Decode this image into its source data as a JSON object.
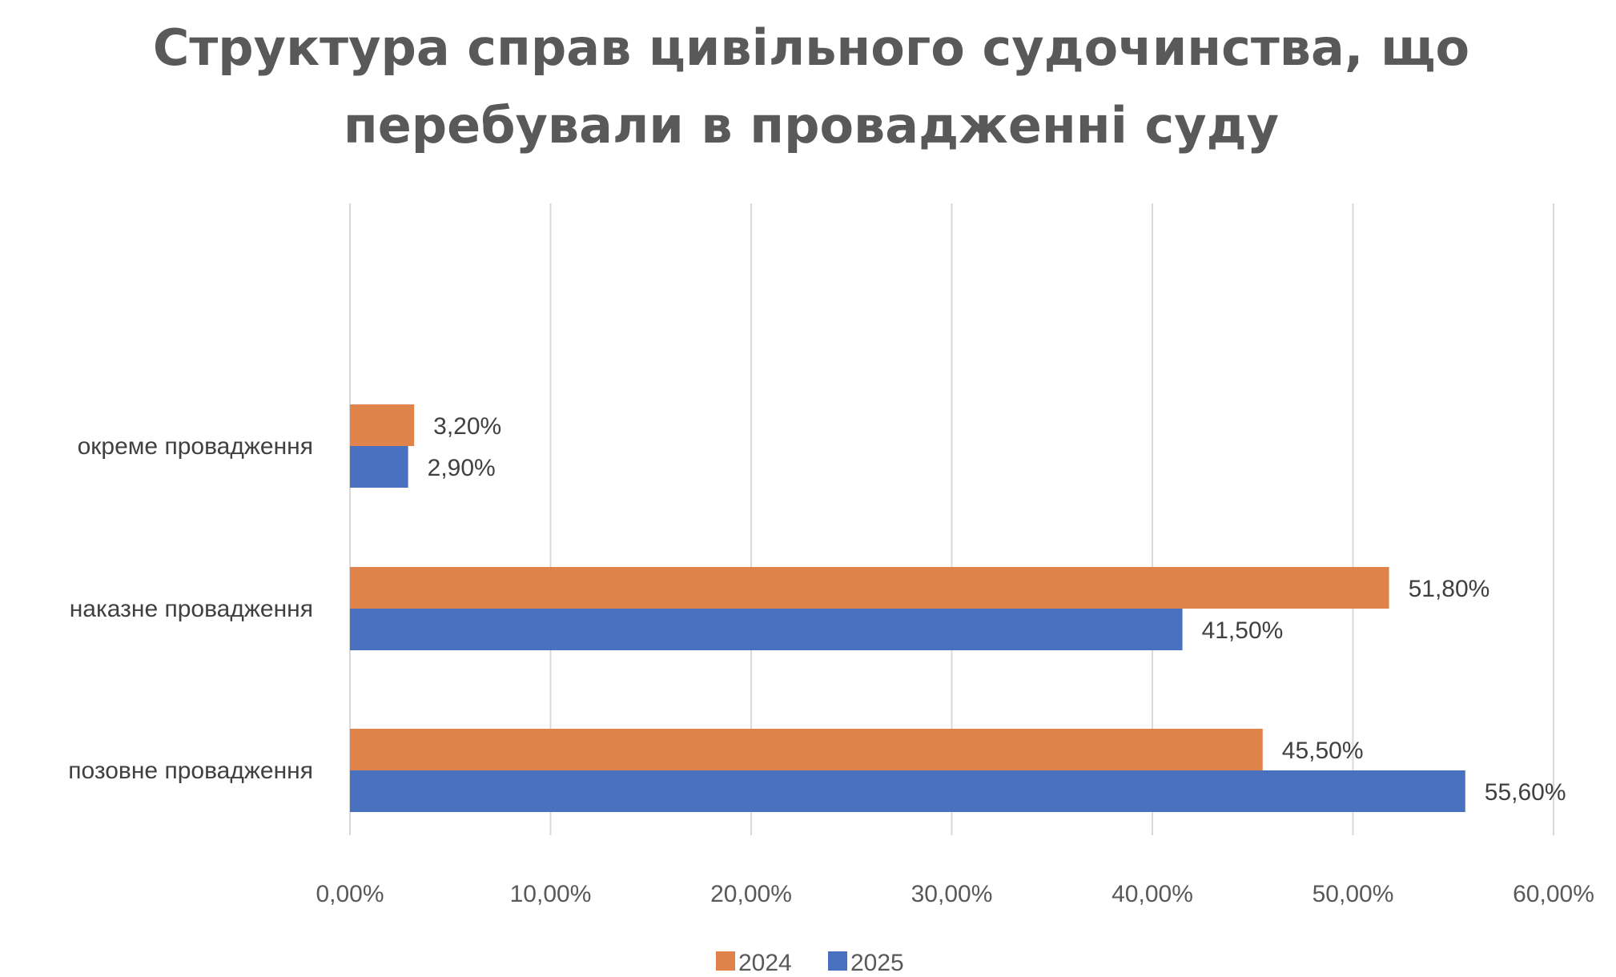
{
  "chart_data": {
    "type": "bar",
    "orientation": "horizontal",
    "title_lines": [
      "Структура справ цивільного судочинства, що",
      "перебували в провадженні суду"
    ],
    "categories": [
      "окреме провадження",
      "наказне провадження",
      "позовне провадження"
    ],
    "series": [
      {
        "name": "2024",
        "color": "#E0834A",
        "values": [
          3.2,
          51.8,
          45.5
        ],
        "labels": [
          "3,20%",
          "51,80%",
          "45,50%"
        ]
      },
      {
        "name": "2025",
        "color": "#4A70C0",
        "values": [
          2.9,
          41.5,
          55.6
        ],
        "labels": [
          "2,90%",
          "41,50%",
          "55,60%"
        ]
      }
    ],
    "xlim": [
      0,
      60
    ],
    "xticks": [
      0,
      10,
      20,
      30,
      40,
      50,
      60
    ],
    "xtick_labels": [
      "0,00%",
      "10,00%",
      "20,00%",
      "30,00%",
      "40,00%",
      "50,00%",
      "60,00%"
    ],
    "grid": true,
    "legend_position": "bottom",
    "xlabel": "",
    "ylabel": ""
  }
}
